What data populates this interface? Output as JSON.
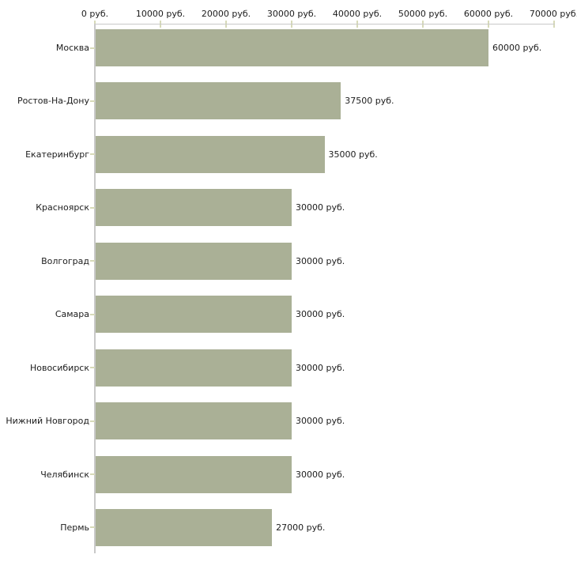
{
  "chart_data": {
    "type": "bar",
    "orientation": "horizontal",
    "title": "",
    "categories": [
      "Москва",
      "Ростов-На-Дону",
      "Екатеринбург",
      "Красноярск",
      "Волгоград",
      "Самара",
      "Новосибирск",
      "Нижний Новгород",
      "Челябинск",
      "Пермь"
    ],
    "values": [
      60000,
      37500,
      35000,
      30000,
      30000,
      30000,
      30000,
      30000,
      30000,
      27000
    ],
    "value_labels": [
      "60000 руб.",
      "37500 руб.",
      "35000 руб.",
      "30000 руб.",
      "30000 руб.",
      "30000 руб.",
      "30000 руб.",
      "30000 руб.",
      "30000 руб.",
      "27000 руб."
    ],
    "x_axis": {
      "position": "top",
      "range": [
        0,
        70000
      ],
      "ticks": [
        0,
        10000,
        20000,
        30000,
        40000,
        50000,
        60000,
        70000
      ],
      "tick_labels": [
        "0 руб.",
        "10000 руб.",
        "20000 руб.",
        "30000 руб.",
        "40000 руб.",
        "50000 руб.",
        "60000 руб.",
        "70000 руб."
      ],
      "unit": "руб."
    },
    "ylabel": "",
    "xlabel": "",
    "legend": "none",
    "grid": "off",
    "colors": {
      "bar": "#aab096",
      "axis": "#c9c9c9",
      "tick": "#d7dab9",
      "text": "#1c1c1c",
      "background": "#ffffff"
    }
  }
}
